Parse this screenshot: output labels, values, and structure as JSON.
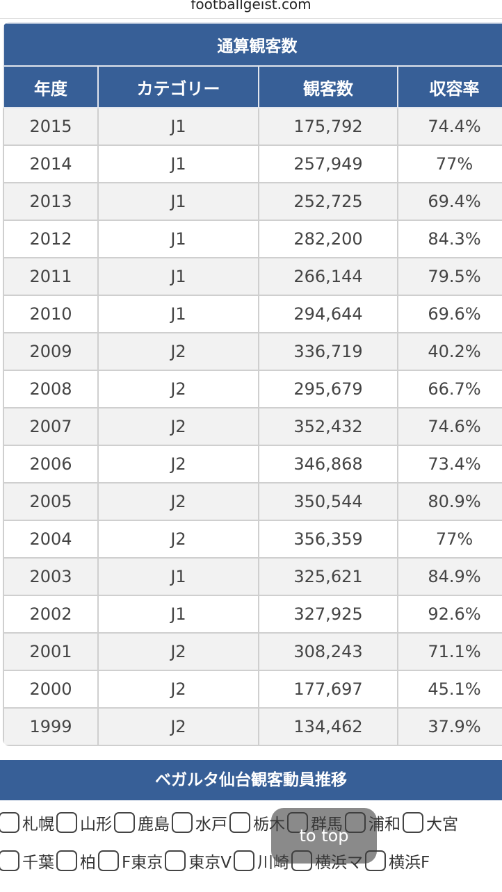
{
  "url": "footballgeist.com",
  "table": {
    "title": "通算観客数",
    "headers": [
      "年度",
      "カテゴリー",
      "観客数",
      "収容率"
    ],
    "rows": [
      [
        "2015",
        "J1",
        "175,792",
        "74.4%"
      ],
      [
        "2014",
        "J1",
        "257,949",
        "77%"
      ],
      [
        "2013",
        "J1",
        "252,725",
        "69.4%"
      ],
      [
        "2012",
        "J1",
        "282,200",
        "84.3%"
      ],
      [
        "2011",
        "J1",
        "266,144",
        "79.5%"
      ],
      [
        "2010",
        "J1",
        "294,644",
        "69.6%"
      ],
      [
        "2009",
        "J2",
        "336,719",
        "40.2%"
      ],
      [
        "2008",
        "J2",
        "295,679",
        "66.7%"
      ],
      [
        "2007",
        "J2",
        "352,432",
        "74.6%"
      ],
      [
        "2006",
        "J2",
        "346,868",
        "73.4%"
      ],
      [
        "2005",
        "J2",
        "350,544",
        "80.9%"
      ],
      [
        "2004",
        "J2",
        "356,359",
        "77%"
      ],
      [
        "2003",
        "J1",
        "325,621",
        "84.9%"
      ],
      [
        "2002",
        "J1",
        "327,925",
        "92.6%"
      ],
      [
        "2001",
        "J2",
        "308,243",
        "71.1%"
      ],
      [
        "2000",
        "J2",
        "177,697",
        "45.1%"
      ],
      [
        "1999",
        "J2",
        "134,462",
        "37.9%"
      ]
    ]
  },
  "section": {
    "title": "ベガルタ仙台観客動員推移",
    "checkbox_rows": [
      [
        "札幌",
        "山形",
        "鹿島",
        "水戸",
        "栃木",
        "群馬",
        "浦和",
        "大宮"
      ],
      [
        "千葉",
        "柏",
        "F東京",
        "東京V",
        "川崎",
        "横浜マ",
        "横浜F"
      ]
    ]
  },
  "to_top": "to top"
}
